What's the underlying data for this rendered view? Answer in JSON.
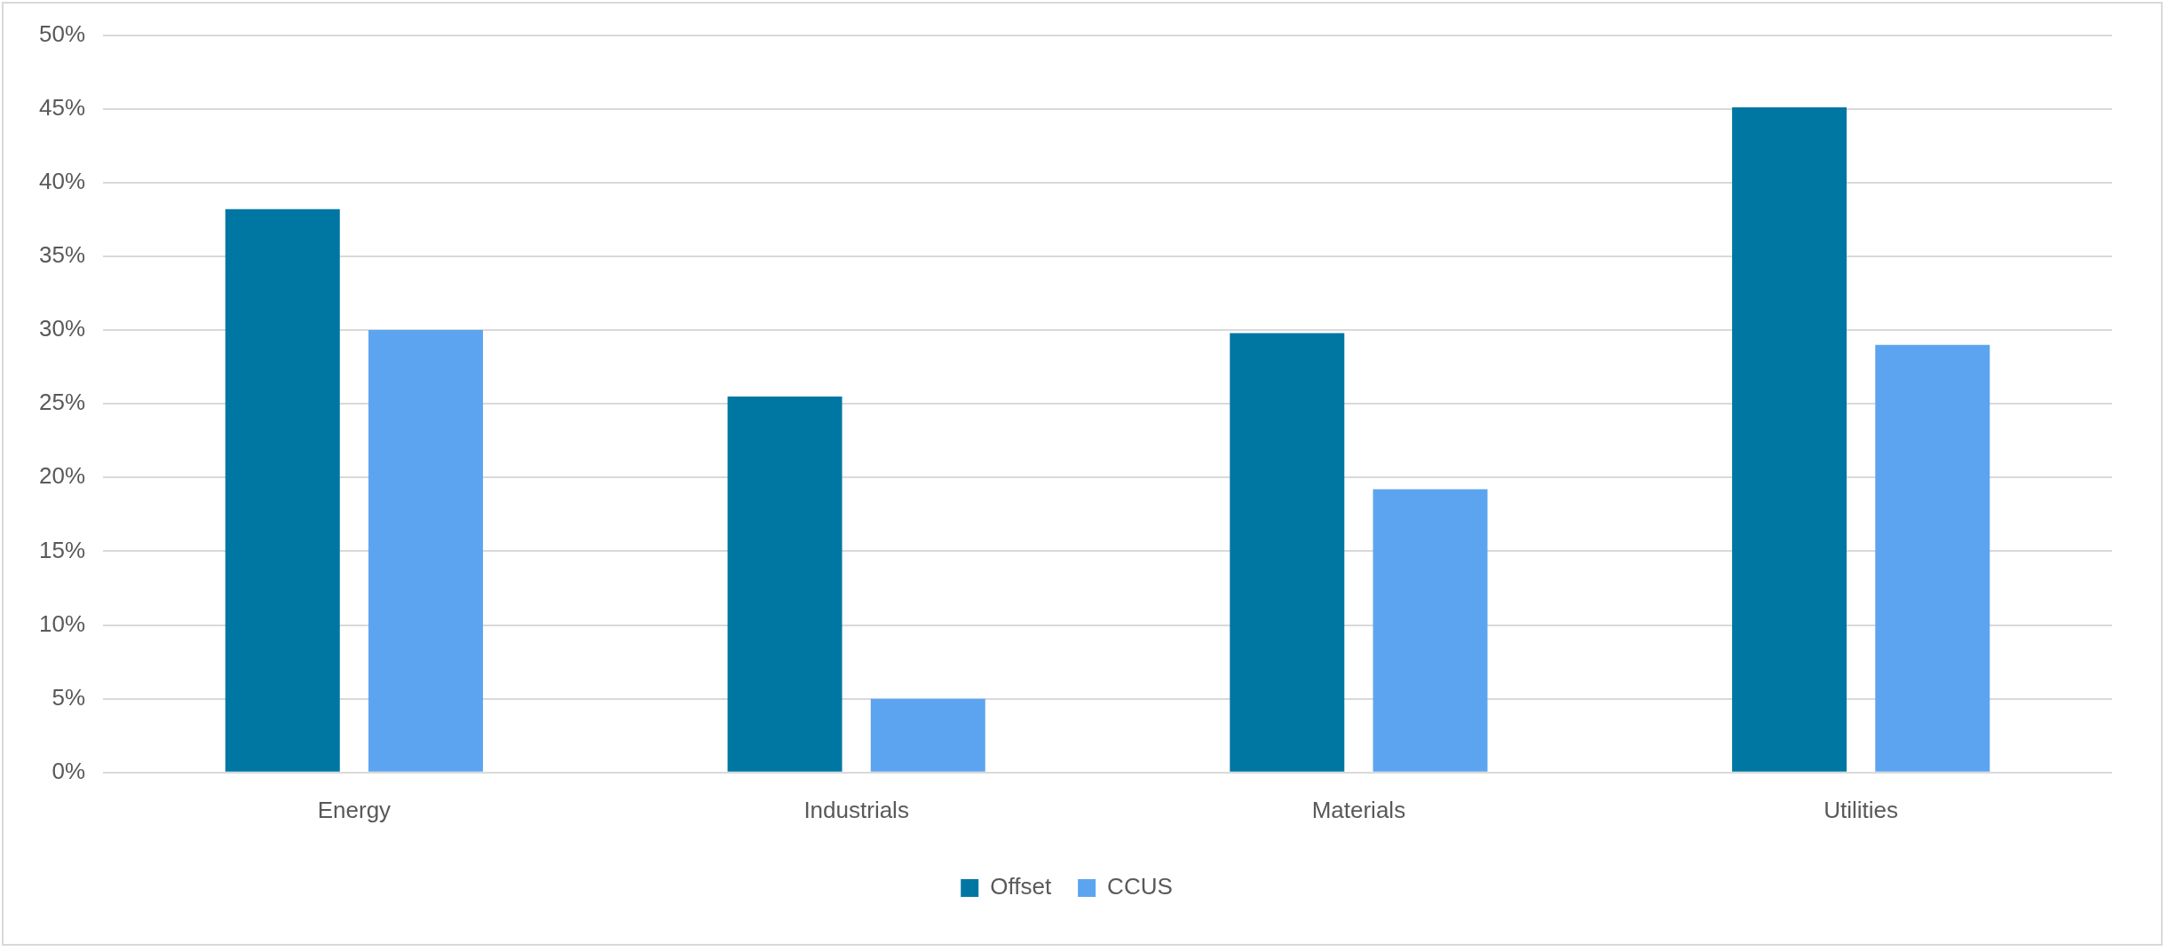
{
  "chart_data": {
    "type": "bar",
    "categories": [
      "Energy",
      "Industrials",
      "Materials",
      "Utilities"
    ],
    "series": [
      {
        "name": "Offset",
        "color": "#0077a3",
        "values": [
          38.2,
          25.5,
          29.8,
          45.1
        ]
      },
      {
        "name": "CCUS",
        "color": "#5ca4f0",
        "values": [
          30.0,
          5.0,
          19.2,
          29.0
        ]
      }
    ],
    "ylim": [
      0,
      50
    ],
    "yticks": [
      {
        "value": 0,
        "label": "0%"
      },
      {
        "value": 5,
        "label": "5%"
      },
      {
        "value": 10,
        "label": "10%"
      },
      {
        "value": 15,
        "label": "15%"
      },
      {
        "value": 20,
        "label": "20%"
      },
      {
        "value": 25,
        "label": "25%"
      },
      {
        "value": 30,
        "label": "30%"
      },
      {
        "value": 35,
        "label": "35%"
      },
      {
        "value": 40,
        "label": "40%"
      },
      {
        "value": 45,
        "label": "45%"
      },
      {
        "value": 50,
        "label": "50%"
      }
    ],
    "grid": "y",
    "legend": "bottom"
  }
}
